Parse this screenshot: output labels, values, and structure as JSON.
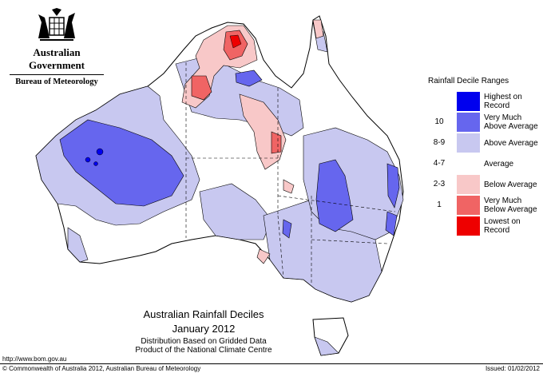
{
  "header": {
    "government": "Australian Government",
    "bureau": "Bureau of Meteorology"
  },
  "legend": {
    "title": "Rainfall Decile Ranges",
    "items": [
      {
        "range": "",
        "label": "Highest on Record",
        "color": "#0000ee"
      },
      {
        "range": "10",
        "label": "Very Much Above Average",
        "color": "#6666ee"
      },
      {
        "range": "8-9",
        "label": "Above Average",
        "color": "#c8c8f0"
      },
      {
        "range": "4-7",
        "label": "Average",
        "color": "#ffffff"
      },
      {
        "range": "2-3",
        "label": "Below Average",
        "color": "#f8c8c8"
      },
      {
        "range": "1",
        "label": "Very Much Below Average",
        "color": "#f06464"
      },
      {
        "range": "",
        "label": "Lowest on Record",
        "color": "#ee0000"
      }
    ]
  },
  "titles": {
    "main": "Australian Rainfall Deciles",
    "period": "January 2012",
    "line3": "Distribution Based on Gridded Data",
    "line4": "Product of the National Climate Centre"
  },
  "footer": {
    "url": "http://www.bom.gov.au",
    "copyright": "© Commonwealth of Australia 2012, Australian Bureau of Meteorology",
    "issued": "Issued: 01/02/2012"
  }
}
